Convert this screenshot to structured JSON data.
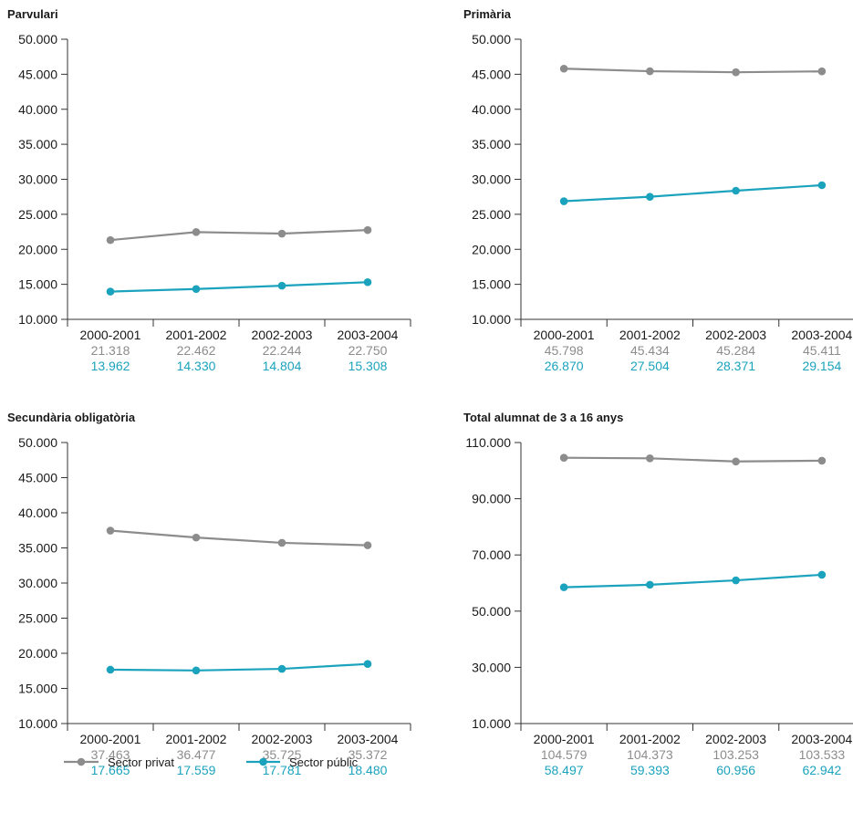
{
  "colors": {
    "private": "#8c8c8c",
    "public": "#1ba3bd",
    "axis": "#333333"
  },
  "legend": [
    {
      "key": "private",
      "label": "Sector privat"
    },
    {
      "key": "public",
      "label": "Sector públic"
    }
  ],
  "chart_data": [
    {
      "type": "line",
      "title": "Parvulari",
      "categories": [
        "2000-2001",
        "2001-2002",
        "2002-2003",
        "2003-2004"
      ],
      "yticks": [
        "50.000",
        "45.000",
        "40.000",
        "35.000",
        "30.000",
        "25.000",
        "20.000",
        "15.000",
        "10.000"
      ],
      "ylim": [
        10000,
        50000
      ],
      "series": [
        {
          "name": "Sector privat",
          "key": "private",
          "values": [
            21318,
            22462,
            22244,
            22750
          ],
          "labels": [
            "21.318",
            "22.462",
            "22.244",
            "22.750"
          ]
        },
        {
          "name": "Sector públic",
          "key": "public",
          "values": [
            13962,
            14330,
            14804,
            15308
          ],
          "labels": [
            "13.962",
            "14.330",
            "14.804",
            "15.308"
          ]
        }
      ]
    },
    {
      "type": "line",
      "title": "Primària",
      "categories": [
        "2000-2001",
        "2001-2002",
        "2002-2003",
        "2003-2004"
      ],
      "yticks": [
        "50.000",
        "45.000",
        "40.000",
        "35.000",
        "30.000",
        "25.000",
        "20.000",
        "15.000",
        "10.000"
      ],
      "ylim": [
        10000,
        50000
      ],
      "series": [
        {
          "name": "Sector privat",
          "key": "private",
          "values": [
            45798,
            45434,
            45284,
            45411
          ],
          "labels": [
            "45.798",
            "45.434",
            "45.284",
            "45.411"
          ]
        },
        {
          "name": "Sector públic",
          "key": "public",
          "values": [
            26870,
            27504,
            28371,
            29154
          ],
          "labels": [
            "26.870",
            "27.504",
            "28.371",
            "29.154"
          ]
        }
      ]
    },
    {
      "type": "line",
      "title": "Secundària obligatòria",
      "categories": [
        "2000-2001",
        "2001-2002",
        "2002-2003",
        "2003-2004"
      ],
      "yticks": [
        "50.000",
        "45.000",
        "40.000",
        "35.000",
        "30.000",
        "25.000",
        "20.000",
        "15.000",
        "10.000"
      ],
      "ylim": [
        10000,
        50000
      ],
      "series": [
        {
          "name": "Sector privat",
          "key": "private",
          "values": [
            37463,
            36477,
            35725,
            35372
          ],
          "labels": [
            "37.463",
            "36.477",
            "35.725",
            "35.372"
          ]
        },
        {
          "name": "Sector públic",
          "key": "public",
          "values": [
            17665,
            17559,
            17781,
            18480
          ],
          "labels": [
            "17.665",
            "17.559",
            "17.781",
            "18.480"
          ]
        }
      ]
    },
    {
      "type": "line",
      "title": "Total alumnat de 3 a 16 anys",
      "categories": [
        "2000-2001",
        "2001-2002",
        "2002-2003",
        "2003-2004"
      ],
      "yticks": [
        "110.000",
        "90.000",
        "70.000",
        "50.000",
        "30.000",
        "10.000"
      ],
      "ylim": [
        10000,
        110000
      ],
      "series": [
        {
          "name": "Sector privat",
          "key": "private",
          "values": [
            104579,
            104373,
            103253,
            103533
          ],
          "labels": [
            "104.579",
            "104.373",
            "103.253",
            "103.533"
          ]
        },
        {
          "name": "Sector públic",
          "key": "public",
          "values": [
            58497,
            59393,
            60956,
            62942
          ],
          "labels": [
            "58.497",
            "59.393",
            "60.956",
            "62.942"
          ]
        }
      ]
    }
  ]
}
